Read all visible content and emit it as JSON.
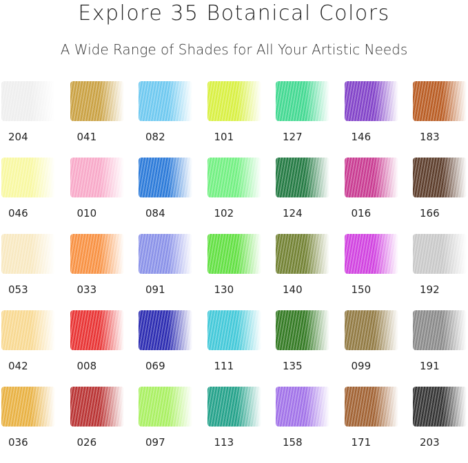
{
  "title": "Explore 35 Botanical Colors",
  "subtitle": "A Wide Range of Shades for All Your Artistic Needs",
  "swatches": [
    {
      "code": "204",
      "color": "#eeeeee"
    },
    {
      "code": "041",
      "color": "#c9a040"
    },
    {
      "code": "082",
      "color": "#6cc8f0"
    },
    {
      "code": "101",
      "color": "#d8f040"
    },
    {
      "code": "127",
      "color": "#40d890"
    },
    {
      "code": "146",
      "color": "#8040c8"
    },
    {
      "code": "183",
      "color": "#b85a20"
    },
    {
      "code": "046",
      "color": "#f8f8a0"
    },
    {
      "code": "010",
      "color": "#f8a8c8"
    },
    {
      "code": "084",
      "color": "#2878d8"
    },
    {
      "code": "102",
      "color": "#70f080"
    },
    {
      "code": "124",
      "color": "#207840"
    },
    {
      "code": "016",
      "color": "#c83890"
    },
    {
      "code": "166",
      "color": "#5a3a28"
    },
    {
      "code": "053",
      "color": "#f8e8c0"
    },
    {
      "code": "033",
      "color": "#f89040"
    },
    {
      "code": "091",
      "color": "#8890e8"
    },
    {
      "code": "130",
      "color": "#60e040"
    },
    {
      "code": "140",
      "color": "#708030"
    },
    {
      "code": "150",
      "color": "#d040e0"
    },
    {
      "code": "192",
      "color": "#c8c8c8"
    },
    {
      "code": "042",
      "color": "#f8d890"
    },
    {
      "code": "008",
      "color": "#e83030"
    },
    {
      "code": "069",
      "color": "#2828b0"
    },
    {
      "code": "111",
      "color": "#40c8d8"
    },
    {
      "code": "135",
      "color": "#307820"
    },
    {
      "code": "099",
      "color": "#907840"
    },
    {
      "code": "191",
      "color": "#888888"
    },
    {
      "code": "036",
      "color": "#e8b040"
    },
    {
      "code": "026",
      "color": "#b83030"
    },
    {
      "code": "097",
      "color": "#a8f060"
    },
    {
      "code": "113",
      "color": "#20a088"
    },
    {
      "code": "158",
      "color": "#a070e8"
    },
    {
      "code": "171",
      "color": "#a06030"
    },
    {
      "code": "203",
      "color": "#303030"
    }
  ]
}
